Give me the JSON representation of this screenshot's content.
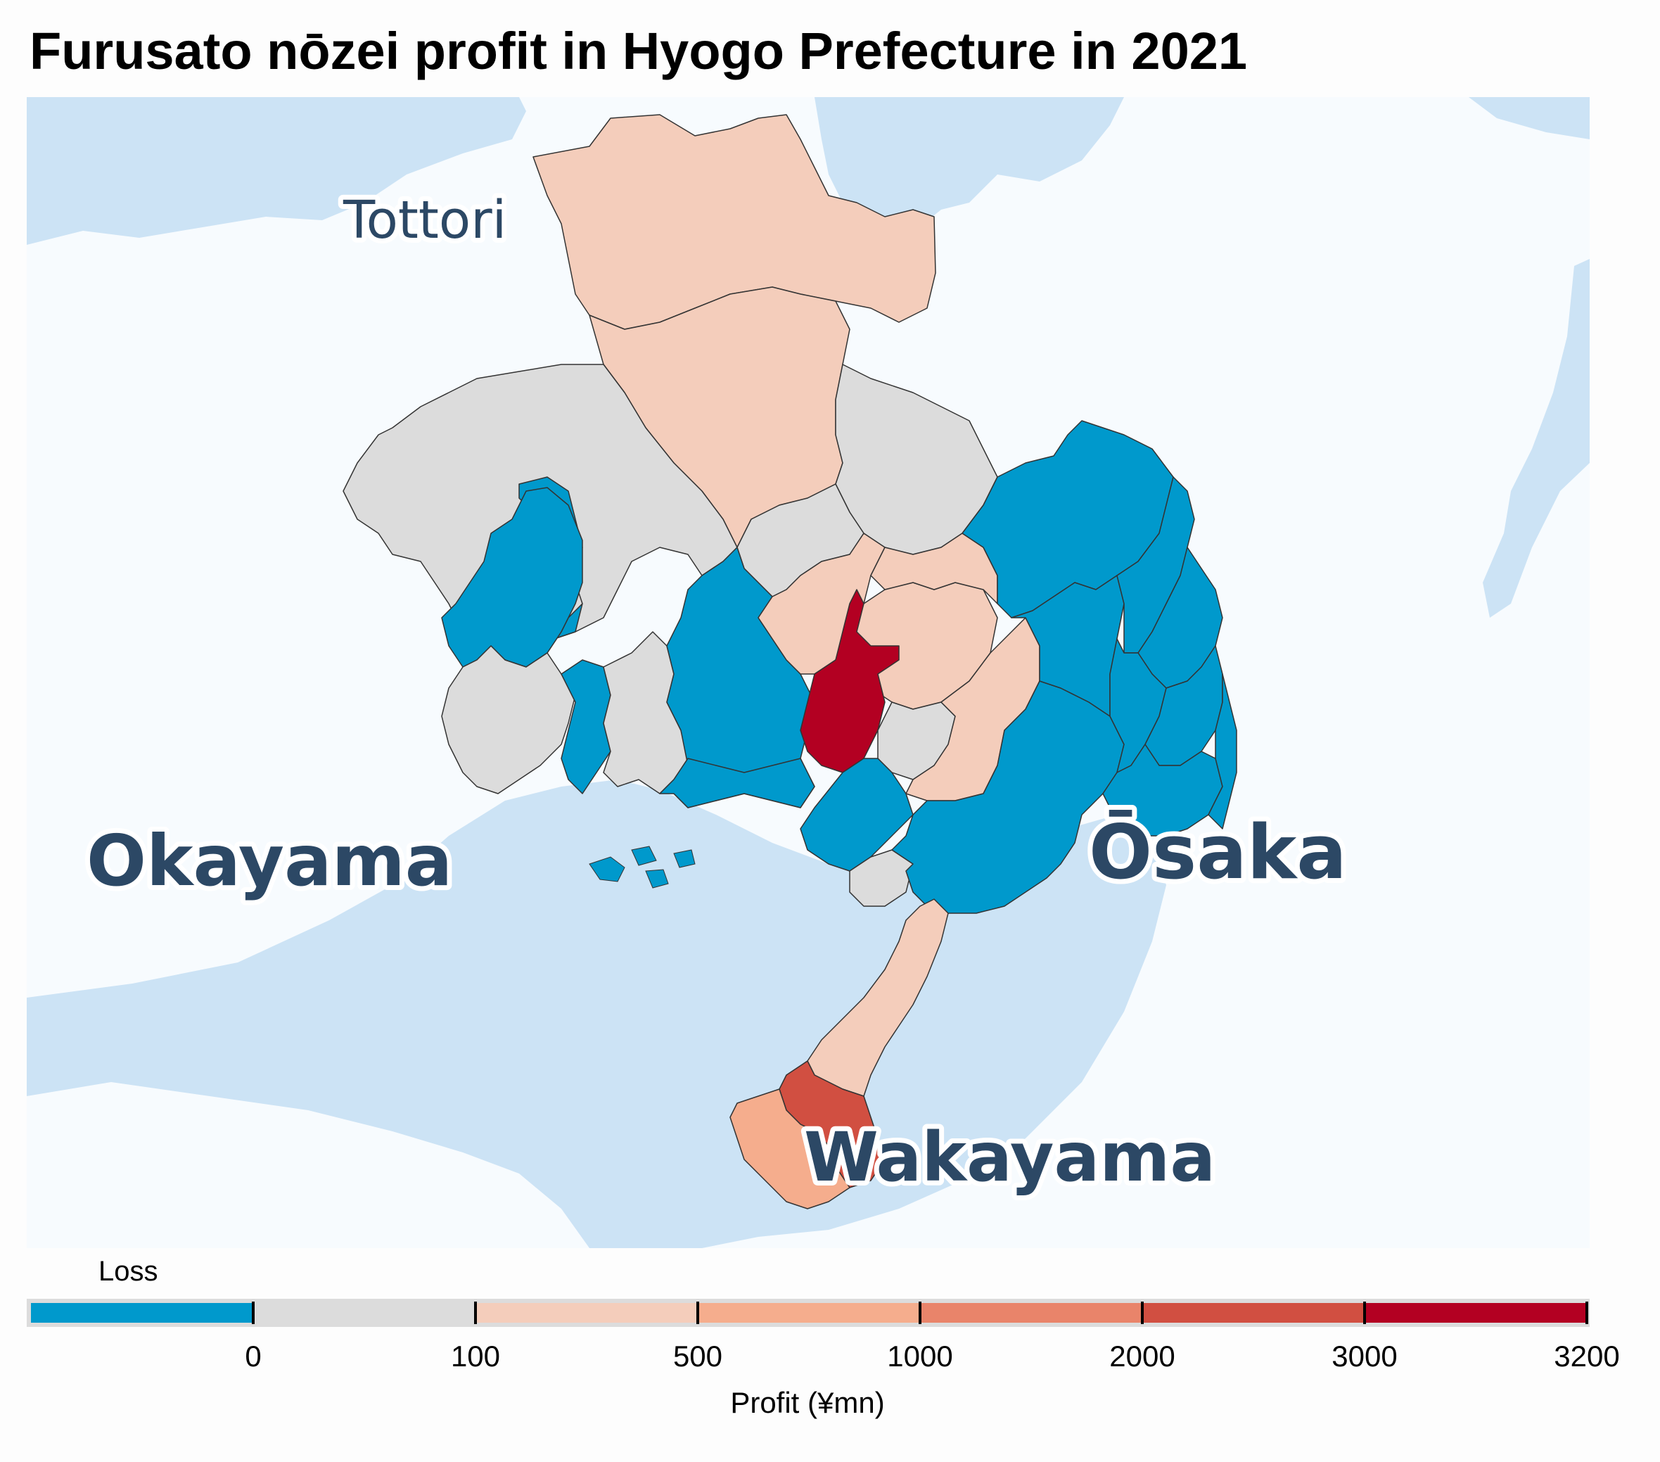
{
  "title": "Furusato nōzei profit in Hyogo Prefecture in 2021",
  "map": {
    "labels": {
      "tottori": "Tottori",
      "okayama": "Okayama",
      "osaka": "Ōsaka",
      "wakayama": "Wakayama"
    },
    "colors": {
      "sea": "#cce3f5",
      "land": "#f7fbfe",
      "border": "#333333"
    }
  },
  "legend": {
    "loss_label": "Loss",
    "axis_title": "Profit (¥mn)",
    "ticks": [
      "0",
      "100",
      "500",
      "1000",
      "2000",
      "3000",
      "3200"
    ],
    "bins": [
      {
        "range": "Loss",
        "color": "#0099cc"
      },
      {
        "range": "0–100",
        "color": "#dcdcdc"
      },
      {
        "range": "100–500",
        "color": "#f4cdbb"
      },
      {
        "range": "500–1000",
        "color": "#f5ad8d"
      },
      {
        "range": "1000–2000",
        "color": "#e9846a"
      },
      {
        "range": "2000–3000",
        "color": "#d14f41"
      },
      {
        "range": "3000–3200",
        "color": "#b30022"
      }
    ]
  }
}
